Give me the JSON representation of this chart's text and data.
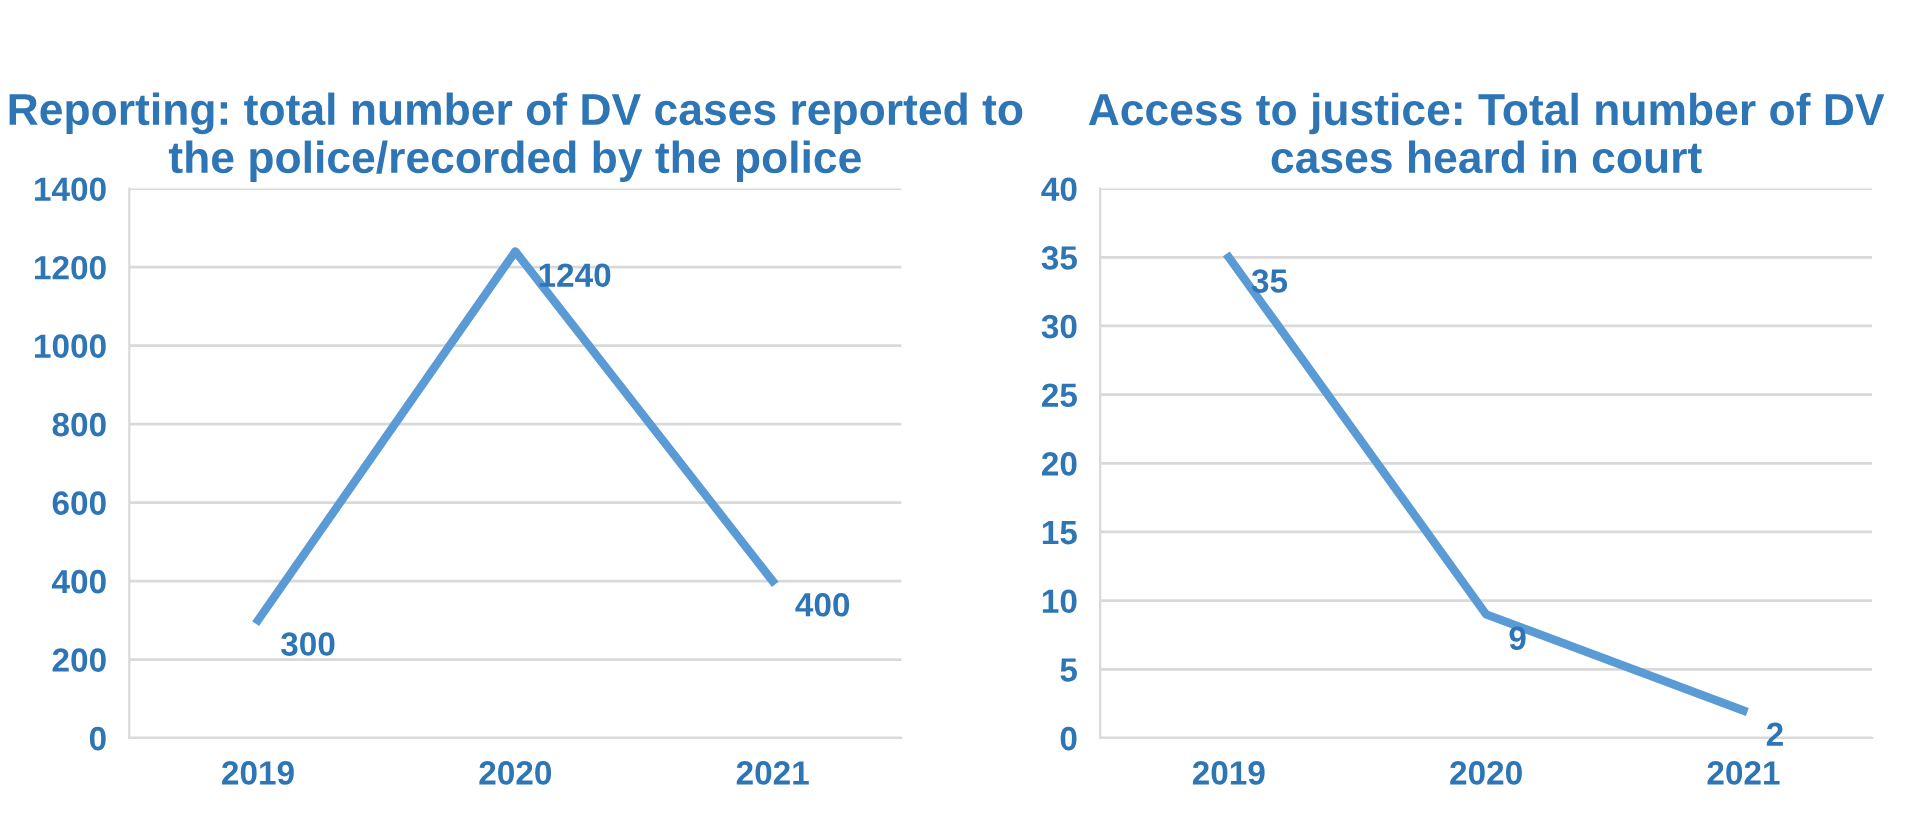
{
  "chart_data": [
    {
      "type": "line",
      "title": "Reporting: total number of DV cases reported to the police/recorded by the police",
      "categories": [
        "2019",
        "2020",
        "2021"
      ],
      "series": [
        {
          "color": "#5b9bd5",
          "values": [
            300,
            1240,
            400
          ]
        }
      ],
      "ylim": [
        0,
        1400
      ],
      "yticks": [
        0,
        200,
        400,
        600,
        800,
        1000,
        1200,
        1400
      ],
      "grid": "y",
      "legend": false,
      "data_labels": true,
      "marker": "none",
      "line_style": "solid"
    },
    {
      "type": "line",
      "title": "Access to justice: Total number of DV cases heard in court",
      "categories": [
        "2019",
        "2020",
        "2021"
      ],
      "series": [
        {
          "color": "#5b9bd5",
          "values": [
            35,
            9,
            2
          ]
        }
      ],
      "ylim": [
        0,
        40
      ],
      "yticks": [
        0,
        5,
        10,
        15,
        20,
        25,
        30,
        35,
        40
      ],
      "grid": "y",
      "legend": false,
      "data_labels": true,
      "marker": "none",
      "line_style": "solid"
    }
  ]
}
